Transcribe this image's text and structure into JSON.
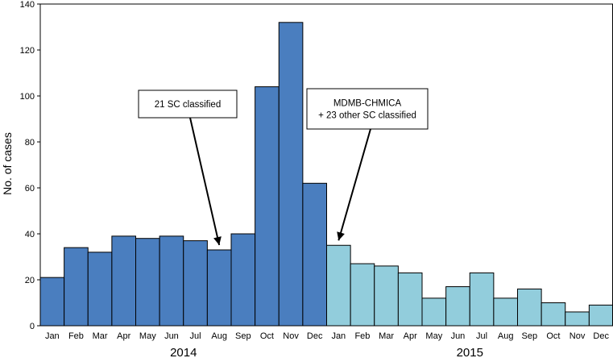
{
  "chart_data": {
    "type": "bar",
    "title": "",
    "xlabel": "",
    "ylabel": "No. of cases",
    "ylim": [
      0,
      140
    ],
    "yticks": [
      0,
      20,
      40,
      60,
      80,
      100,
      120,
      140
    ],
    "grid": false,
    "categories": [
      "Jan",
      "Feb",
      "Mar",
      "Apr",
      "May",
      "Jun",
      "Jul",
      "Aug",
      "Sep",
      "Oct",
      "Nov",
      "Dec",
      "Jan",
      "Feb",
      "Mar",
      "Apr",
      "May",
      "Jun",
      "Jul",
      "Aug",
      "Sep",
      "Oct",
      "Nov",
      "Dec"
    ],
    "years": [
      {
        "label": "2014",
        "color": "#4a7ebf"
      },
      {
        "label": "2015",
        "color": "#92cddc"
      }
    ],
    "series": [
      {
        "values": [
          21,
          34,
          32,
          39,
          38,
          39,
          37,
          33,
          40,
          104,
          132,
          62,
          35,
          27,
          26,
          23,
          12,
          17,
          23,
          12,
          16,
          10,
          6,
          9
        ]
      }
    ],
    "annotations": [
      {
        "lines": [
          "21 SC classified"
        ],
        "target_index": 7
      },
      {
        "lines": [
          "MDMB-CHMICA",
          "+ 23 other SC classified"
        ],
        "target_index": 12
      }
    ]
  }
}
